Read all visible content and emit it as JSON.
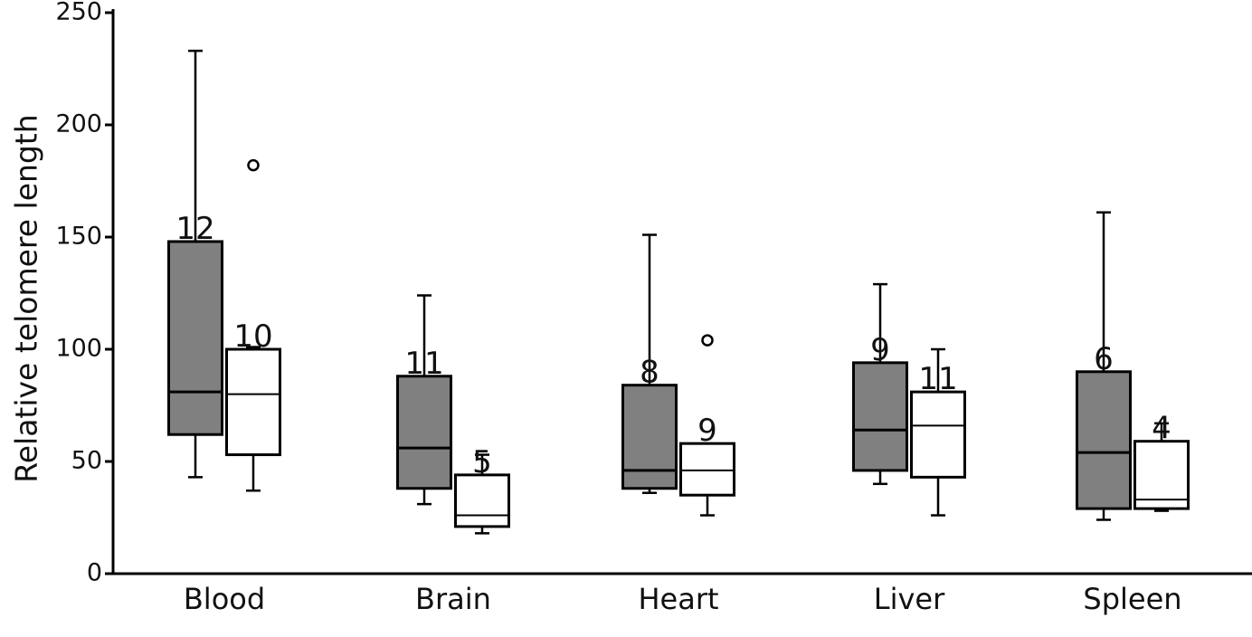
{
  "chart_data": {
    "type": "boxplot",
    "title": "",
    "xlabel": "",
    "ylabel": "Relative telomere length",
    "ylim": [
      0,
      250
    ],
    "yticks": [
      0,
      50,
      100,
      150,
      200,
      250
    ],
    "grid": false,
    "legend": "none",
    "categories": [
      "Blood",
      "Brain",
      "Heart",
      "Liver",
      "Spleen"
    ],
    "series": [
      {
        "fill": "#808080",
        "boxes": [
          {
            "min": 43,
            "q1": 62,
            "median": 81,
            "q3": 148,
            "max": 233,
            "n": "12",
            "outliers": []
          },
          {
            "min": 31,
            "q1": 38,
            "median": 56,
            "q3": 88,
            "max": 124,
            "n": "11",
            "outliers": []
          },
          {
            "min": 36,
            "q1": 38,
            "median": 46,
            "q3": 84,
            "max": 151,
            "n": "8",
            "outliers": []
          },
          {
            "min": 40,
            "q1": 46,
            "median": 64,
            "q3": 94,
            "max": 129,
            "n": "9",
            "outliers": []
          },
          {
            "min": 24,
            "q1": 29,
            "median": 54,
            "q3": 90,
            "max": 161,
            "n": "6",
            "outliers": []
          }
        ]
      },
      {
        "fill": "#ffffff",
        "boxes": [
          {
            "min": 37,
            "q1": 53,
            "median": 80,
            "q3": 100,
            "max": 101,
            "n": "10",
            "outliers": [
              182
            ]
          },
          {
            "min": 18,
            "q1": 21,
            "median": 26,
            "q3": 44,
            "max": 53,
            "n": "5",
            "outliers": []
          },
          {
            "min": 26,
            "q1": 35,
            "median": 46,
            "q3": 58,
            "max": 58,
            "n": "9",
            "outliers": [
              104
            ]
          },
          {
            "min": 26,
            "q1": 43,
            "median": 66,
            "q3": 81,
            "max": 100,
            "n": "11",
            "outliers": []
          },
          {
            "min": 28,
            "q1": 29,
            "median": 33,
            "q3": 59,
            "max": 67,
            "n": "4",
            "outliers": []
          }
        ]
      }
    ]
  }
}
